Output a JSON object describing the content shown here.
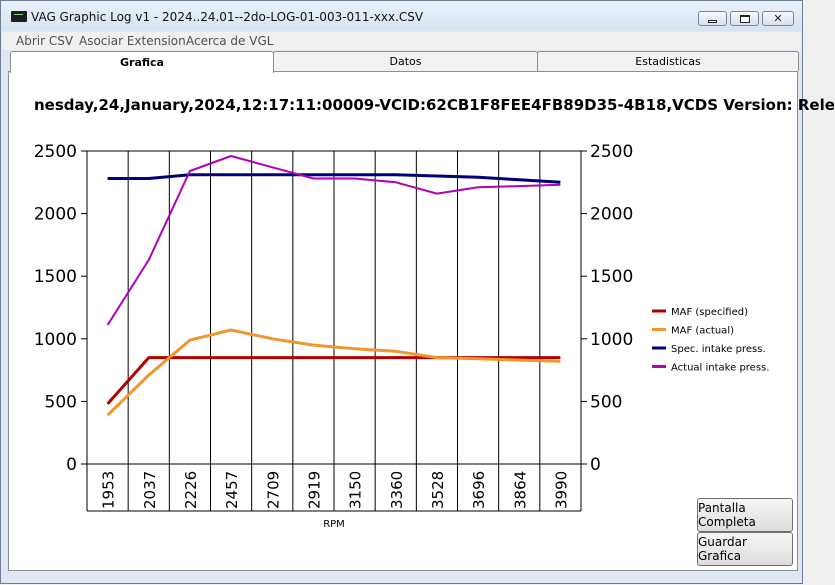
{
  "window": {
    "title": "VAG Graphic Log  v1 -  2024..24.01--2do-LOG-01-003-011-xxx.CSV",
    "minimize_label": "—",
    "maximize_label": "□",
    "close_label": "✕"
  },
  "menu": [
    "Abrir CSV",
    "Asociar Extension",
    "Acerca de VGL"
  ],
  "tabs": [
    {
      "label": "Grafica",
      "active": true
    },
    {
      "label": "Datos",
      "active": false
    },
    {
      "label": "Estadisticas",
      "active": false
    }
  ],
  "header_text": "nesday,24,January,2024,12:17:11:00009-VCID:62CB1F8FEE4FB89D35-4B18,VCDS Version: Rele",
  "buttons": {
    "fullscreen": "Pantalla Completa",
    "save": "Guardar Grafica"
  },
  "chart_data": {
    "type": "line",
    "xlabel": "RPM",
    "ylabel": "",
    "ylim": [
      0,
      2500
    ],
    "yticks": [
      0,
      500,
      1000,
      1500,
      2000,
      2500
    ],
    "grid": "vertical",
    "legend_position": "right",
    "categories": [
      "1953",
      "2037",
      "2226",
      "2457",
      "2709",
      "2919",
      "3150",
      "3360",
      "3528",
      "3696",
      "3864",
      "3990"
    ],
    "series": [
      {
        "name": "MAF (specified)",
        "color": "#b00000",
        "values": [
          480,
          850,
          850,
          850,
          850,
          850,
          850,
          850,
          850,
          850,
          850,
          850
        ]
      },
      {
        "name": "MAF (actual)",
        "color": "#f0962e",
        "values": [
          390,
          710,
          990,
          1070,
          1000,
          950,
          920,
          900,
          850,
          840,
          830,
          820
        ]
      },
      {
        "name": "Spec. intake press.",
        "color": "#00007a",
        "values": [
          2280,
          2280,
          2310,
          2310,
          2310,
          2310,
          2310,
          2310,
          2300,
          2290,
          2270,
          2250
        ]
      },
      {
        "name": "Actual intake press.",
        "color": "#b000b8",
        "values": [
          1110,
          1630,
          2340,
          2460,
          2370,
          2280,
          2280,
          2250,
          2160,
          2210,
          2220,
          2230
        ]
      }
    ]
  }
}
